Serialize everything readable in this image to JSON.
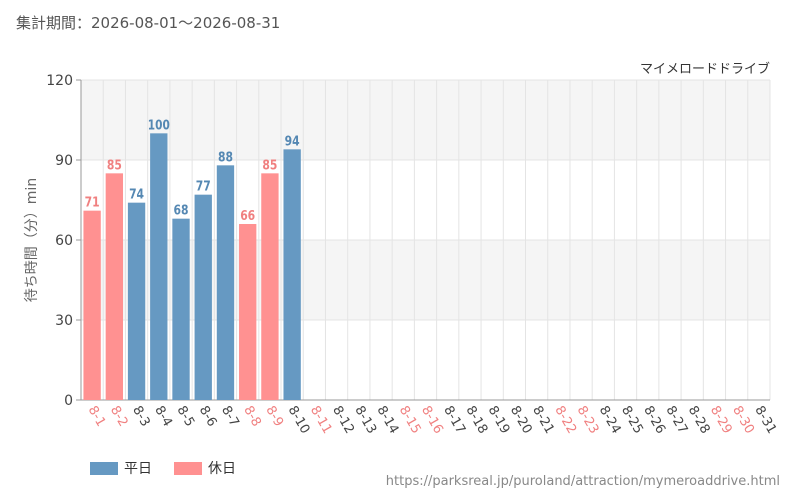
{
  "header": {
    "period_label": "集計期間：2026-08-01～2026-08-31",
    "attraction_name": "マイメロードドライブ"
  },
  "colors": {
    "weekday": "#6699c2",
    "holiday": "#ff9191",
    "weekday_text": "#5588b3",
    "holiday_text": "#f08080"
  },
  "legend": {
    "weekday": "平日",
    "holiday": "休日"
  },
  "footer": {
    "url": "https://parksreal.jp/puroland/attraction/mymeroaddrive.html"
  },
  "chart_data": {
    "type": "bar",
    "title": "マイメロードドライブ",
    "ylabel": "待ち時間（分）min",
    "xlabel": "",
    "ylim": [
      0,
      120
    ],
    "yticks": [
      0,
      30,
      60,
      90,
      120
    ],
    "grid": true,
    "legend_position": "bottom-left",
    "categories": [
      "8-1",
      "8-2",
      "8-3",
      "8-4",
      "8-5",
      "8-6",
      "8-7",
      "8-8",
      "8-9",
      "8-10",
      "8-11",
      "8-12",
      "8-13",
      "8-14",
      "8-15",
      "8-16",
      "8-17",
      "8-18",
      "8-19",
      "8-20",
      "8-21",
      "8-22",
      "8-23",
      "8-24",
      "8-25",
      "8-26",
      "8-27",
      "8-28",
      "8-29",
      "8-30",
      "8-31"
    ],
    "holiday": [
      true,
      true,
      false,
      false,
      false,
      false,
      false,
      true,
      true,
      false,
      true,
      false,
      false,
      false,
      true,
      true,
      false,
      false,
      false,
      false,
      false,
      true,
      true,
      false,
      false,
      false,
      false,
      false,
      true,
      true,
      false
    ],
    "values": [
      71,
      85,
      74,
      100,
      68,
      77,
      88,
      66,
      85,
      94,
      null,
      null,
      null,
      null,
      null,
      null,
      null,
      null,
      null,
      null,
      null,
      null,
      null,
      null,
      null,
      null,
      null,
      null,
      null,
      null,
      null
    ]
  }
}
